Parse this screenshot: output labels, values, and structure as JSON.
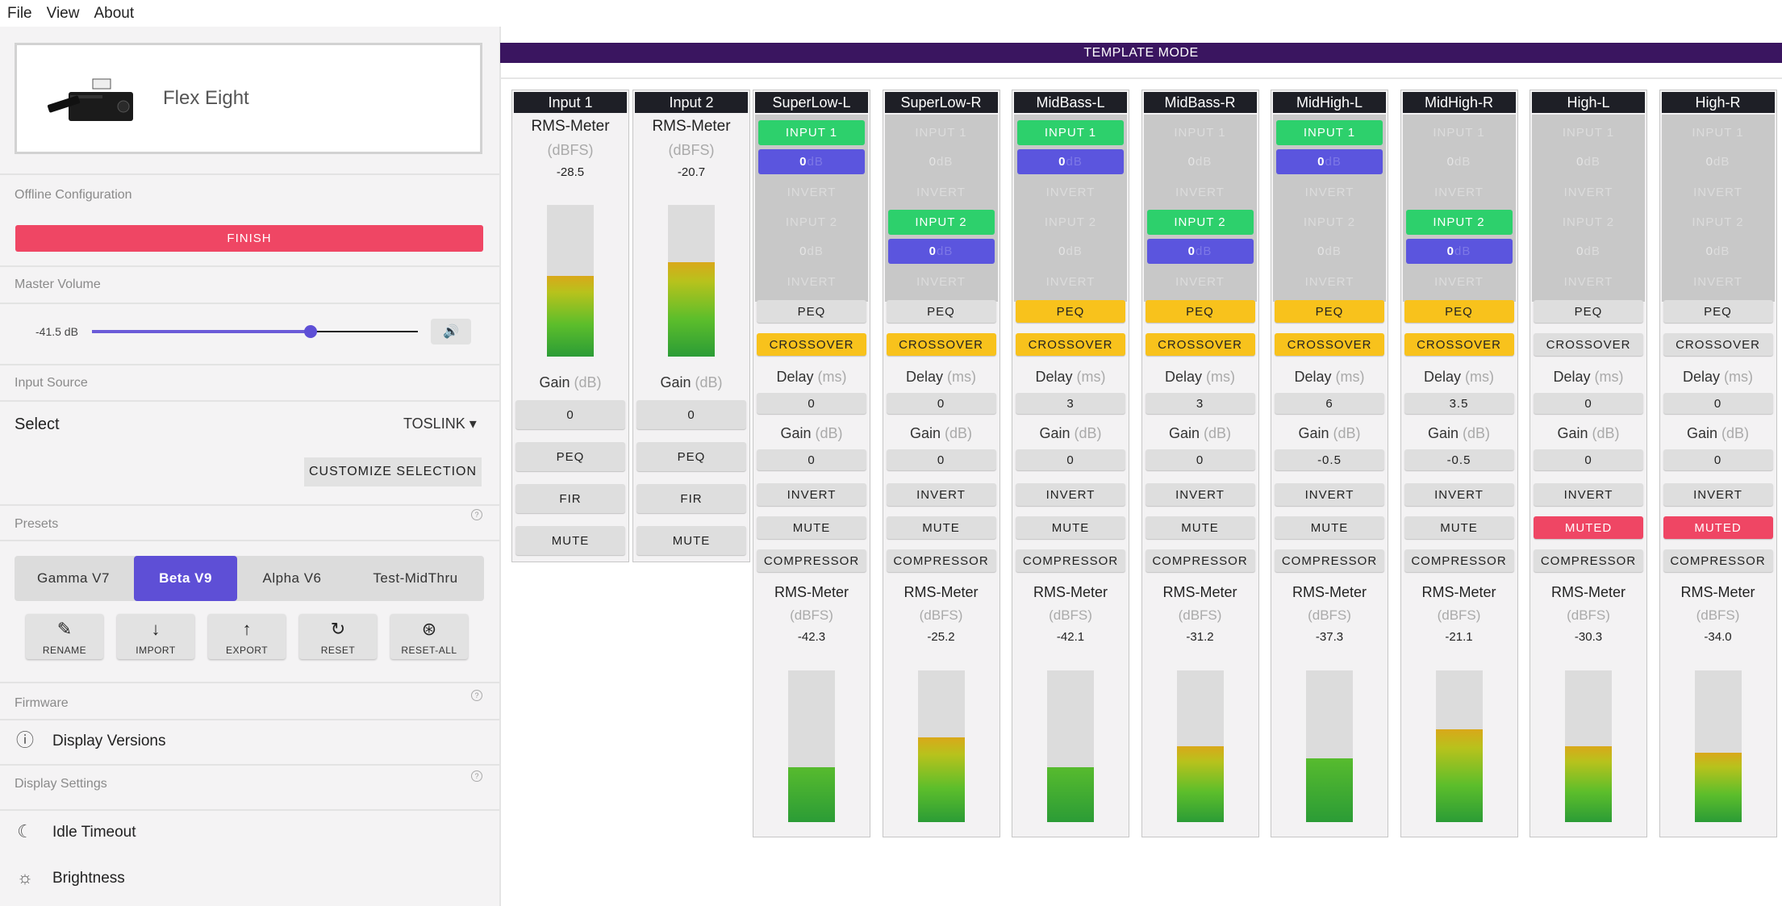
{
  "menu": [
    "File",
    "View",
    "About"
  ],
  "device": {
    "name": "Flex Eight",
    "image_icon": "dsp-device-image"
  },
  "sections": {
    "offline": "Offline Configuration",
    "master_volume": "Master Volume",
    "input_source": "Input Source",
    "presets": "Presets",
    "firmware": "Firmware",
    "display_settings": "Display Settings"
  },
  "finish_label": "FINISH",
  "volume": {
    "label": "-41.5 dB",
    "slider_fraction": 0.67
  },
  "input_select": {
    "label": "Select",
    "value": "TOSLINK ▾",
    "customize": "CUSTOMIZE SELECTION"
  },
  "presets": [
    {
      "label": "Gamma V7",
      "active": false
    },
    {
      "label": "Beta V9",
      "active": true
    },
    {
      "label": "Alpha V6",
      "active": false
    },
    {
      "label": "Test-MidThru",
      "active": false
    }
  ],
  "preset_actions": [
    {
      "label": "RENAME",
      "icon": "edit-icon",
      "glyph": "✎"
    },
    {
      "label": "IMPORT",
      "icon": "arrow-down-icon",
      "glyph": "↓"
    },
    {
      "label": "EXPORT",
      "icon": "arrow-up-icon",
      "glyph": "↑"
    },
    {
      "label": "RESET",
      "icon": "refresh-icon",
      "glyph": "↻"
    },
    {
      "label": "RESET-ALL",
      "icon": "reset-all-icon",
      "glyph": "⊛"
    }
  ],
  "firmware_item": "Display Versions",
  "display_items": [
    "Idle Timeout",
    "Brightness"
  ],
  "template_mode": "TEMPLATE MODE",
  "inputs": [
    {
      "name": "Input 1",
      "meter_label": "RMS-Meter",
      "meter_unit": "(dBFS)",
      "meter_value": "-28.5",
      "level": 0.53,
      "gain_label": "Gain",
      "gain_unit": "(dB)",
      "gain": "0",
      "peq": "PEQ",
      "fir": "FIR",
      "mute": "MUTE"
    },
    {
      "name": "Input 2",
      "meter_label": "RMS-Meter",
      "meter_unit": "(dBFS)",
      "meter_value": "-20.7",
      "level": 0.62,
      "gain_label": "Gain",
      "gain_unit": "(dB)",
      "gain": "0",
      "peq": "PEQ",
      "fir": "FIR",
      "mute": "MUTE"
    }
  ],
  "outputs": [
    {
      "name": "SuperLow-L",
      "in1": true,
      "in1_db": "0",
      "in2": false,
      "in2_db": "0",
      "peq_active": false,
      "crossover_active": true,
      "delay": "0",
      "gain": "0",
      "muted": false,
      "meter_value": "-42.3",
      "level": 0.36
    },
    {
      "name": "SuperLow-R",
      "in1": false,
      "in1_db": "0",
      "in2": true,
      "in2_db": "0",
      "peq_active": false,
      "crossover_active": true,
      "delay": "0",
      "gain": "0",
      "muted": false,
      "meter_value": "-25.2",
      "level": 0.56
    },
    {
      "name": "MidBass-L",
      "in1": true,
      "in1_db": "0",
      "in2": false,
      "in2_db": "0",
      "peq_active": true,
      "crossover_active": true,
      "delay": "3",
      "gain": "0",
      "muted": false,
      "meter_value": "-42.1",
      "level": 0.36
    },
    {
      "name": "MidBass-R",
      "in1": false,
      "in1_db": "0",
      "in2": true,
      "in2_db": "0",
      "peq_active": true,
      "crossover_active": true,
      "delay": "3",
      "gain": "0",
      "muted": false,
      "meter_value": "-31.2",
      "level": 0.5
    },
    {
      "name": "MidHigh-L",
      "in1": true,
      "in1_db": "0",
      "in2": false,
      "in2_db": "0",
      "peq_active": true,
      "crossover_active": true,
      "delay": "6",
      "gain": "-0.5",
      "muted": false,
      "meter_value": "-37.3",
      "level": 0.42
    },
    {
      "name": "MidHigh-R",
      "in1": false,
      "in1_db": "0",
      "in2": true,
      "in2_db": "0",
      "peq_active": true,
      "crossover_active": true,
      "delay": "3.5",
      "gain": "-0.5",
      "muted": false,
      "meter_value": "-21.1",
      "level": 0.61
    },
    {
      "name": "High-L",
      "in1": false,
      "in1_db": "0",
      "in2": false,
      "in2_db": "0",
      "peq_active": false,
      "crossover_active": false,
      "delay": "0",
      "gain": "0",
      "muted": true,
      "meter_value": "-30.3",
      "level": 0.5
    },
    {
      "name": "High-R",
      "in1": false,
      "in1_db": "0",
      "in2": false,
      "in2_db": "0",
      "peq_active": false,
      "crossover_active": false,
      "delay": "0",
      "gain": "0",
      "muted": true,
      "meter_value": "-34.0",
      "level": 0.46
    }
  ],
  "output_labels": {
    "input1": "INPUT 1",
    "input2": "INPUT 2",
    "db_suffix": "dB",
    "invert": "INVERT",
    "peq": "PEQ",
    "crossover": "CROSSOVER",
    "delay": "Delay",
    "delay_unit": "(ms)",
    "gain": "Gain",
    "gain_unit": "(dB)",
    "mute": "MUTE",
    "muted": "MUTED",
    "compressor": "COMPRESSOR",
    "meter": "RMS-Meter",
    "meter_unit": "(dBFS)"
  }
}
